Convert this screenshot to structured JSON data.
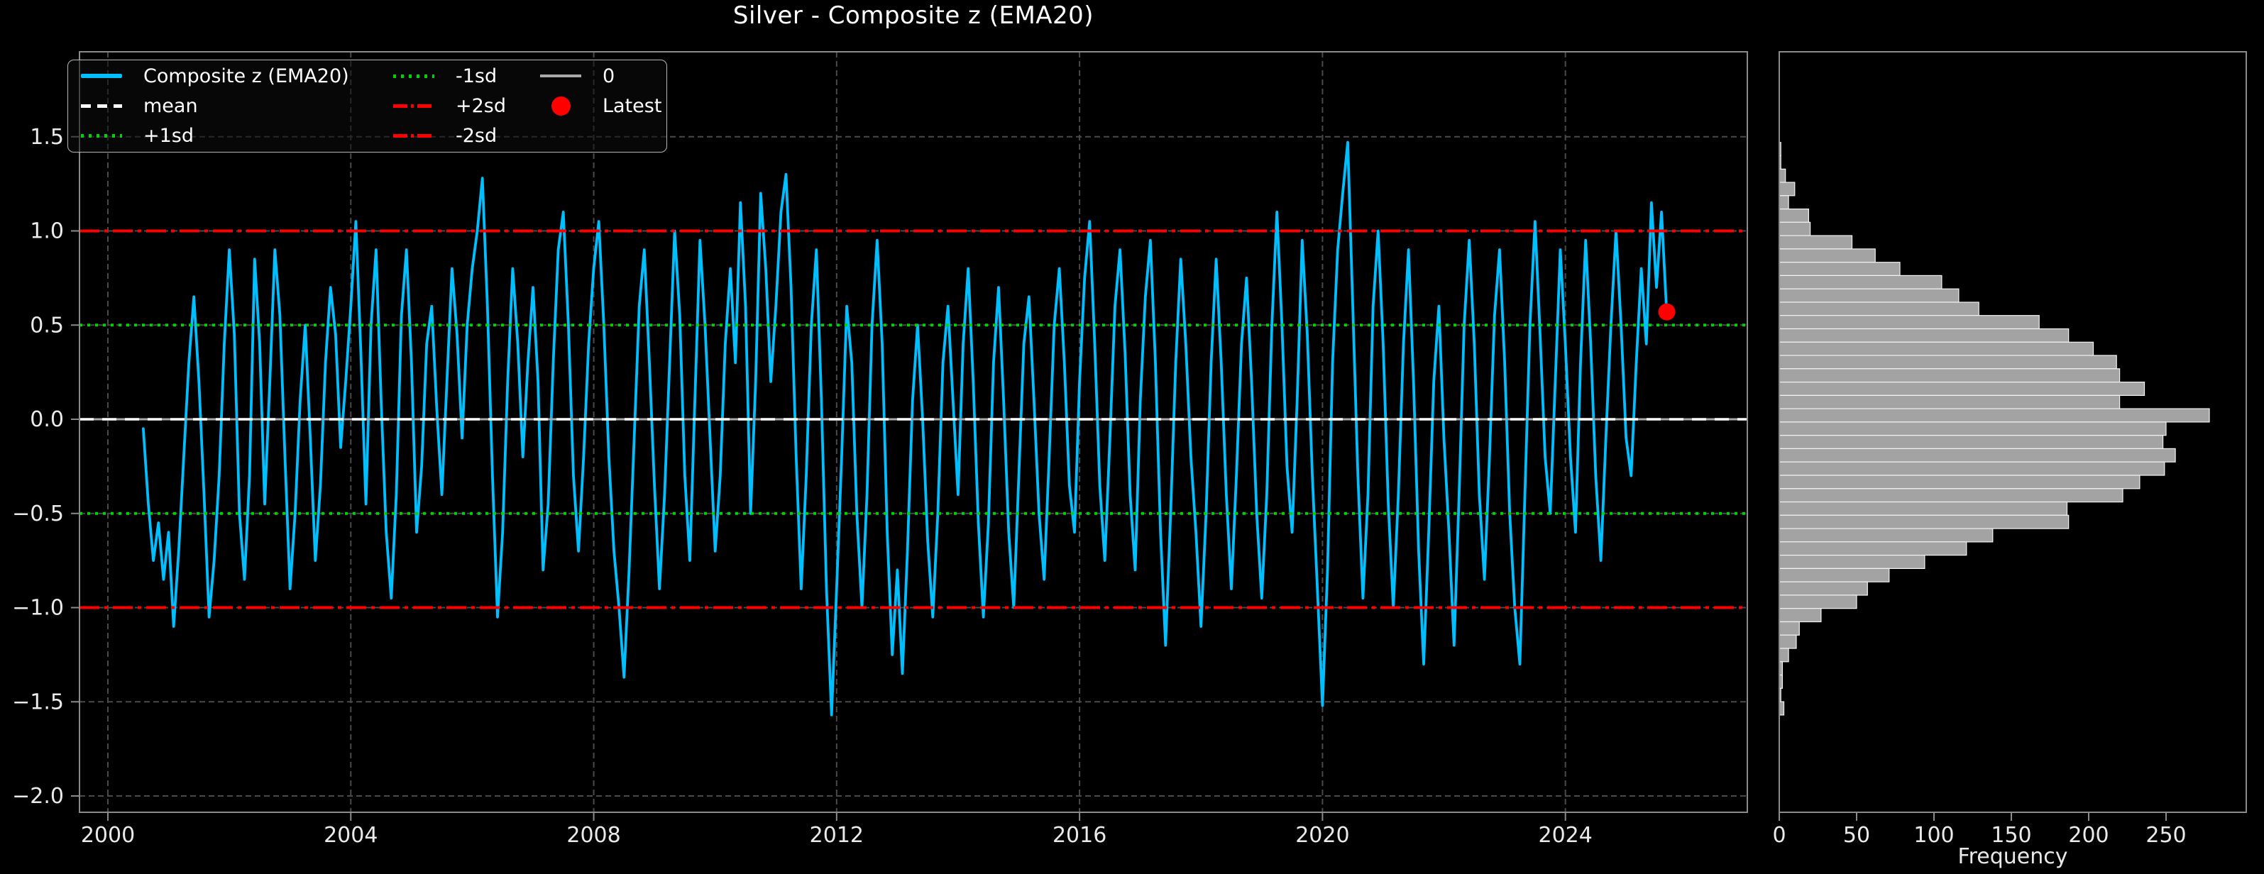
{
  "title": "Silver - Composite z (EMA20)",
  "colors": {
    "background": "#000000",
    "series": "#00bfff",
    "mean": "#ffffff",
    "sd1": "#00d400",
    "sd2": "#ff0000",
    "zero": "#a9a9a9",
    "latest": "#ff0000",
    "grid": "#4a4a4a",
    "spine": "#8a8a8a",
    "tick_label": "#eaeaea",
    "bar_fill": "#a3a3a3",
    "bar_edge": "#f2f2f2"
  },
  "legend": {
    "col1": [
      {
        "label": "Composite z (EMA20)",
        "glyph": "series-line"
      },
      {
        "label": "mean",
        "glyph": "mean-line"
      },
      {
        "label": "+1sd",
        "glyph": "sd1-line"
      }
    ],
    "col2": [
      {
        "label": "-1sd",
        "glyph": "sd1-line"
      },
      {
        "label": "+2sd",
        "glyph": "sd2-line"
      },
      {
        "label": "-2sd",
        "glyph": "sd2-line"
      }
    ],
    "col3": [
      {
        "label": "0",
        "glyph": "zero-line"
      },
      {
        "label": "Latest",
        "glyph": "latest-dot"
      }
    ]
  },
  "chart_data": [
    {
      "type": "line",
      "title": "Silver - Composite z (EMA20)",
      "x_start_year": 2000.583,
      "x_step_years": 0.083333,
      "xlim": [
        1999.53,
        2027.0
      ],
      "ylim": [
        -2.09,
        1.95
      ],
      "grid": true,
      "xticks": [
        {
          "v": 2000,
          "label": "2000"
        },
        {
          "v": 2004,
          "label": "2004"
        },
        {
          "v": 2008,
          "label": "2008"
        },
        {
          "v": 2012,
          "label": "2012"
        },
        {
          "v": 2016,
          "label": "2016"
        },
        {
          "v": 2020,
          "label": "2020"
        },
        {
          "v": 2024,
          "label": "2024"
        }
      ],
      "yticks": [
        {
          "v": 1.5,
          "label": "1.5"
        },
        {
          "v": 1.0,
          "label": "1.0"
        },
        {
          "v": 0.5,
          "label": "0.5"
        },
        {
          "v": 0.0,
          "label": "0.0"
        },
        {
          "v": -0.5,
          "label": "−0.5"
        },
        {
          "v": -1.0,
          "label": "−1.0"
        },
        {
          "v": -1.5,
          "label": "−1.5"
        },
        {
          "v": -2.0,
          "label": "−2.0"
        }
      ],
      "reference_lines": [
        {
          "name": "zero",
          "value": 0.0,
          "style": "solid",
          "color_key": "zero"
        },
        {
          "name": "+1sd",
          "value": 0.5,
          "style": "dotted",
          "color_key": "sd1"
        },
        {
          "name": "-1sd",
          "value": -0.5,
          "style": "dotted",
          "color_key": "sd1"
        },
        {
          "name": "+2sd",
          "value": 1.0,
          "style": "dashdot",
          "color_key": "sd2"
        },
        {
          "name": "-2sd",
          "value": -1.0,
          "style": "dashdot",
          "color_key": "sd2"
        },
        {
          "name": "mean",
          "value": 0.0,
          "style": "dashed",
          "color_key": "mean"
        }
      ],
      "latest": {
        "x_year": 2025.67,
        "value": 0.57
      },
      "series": [
        {
          "name": "Composite z (EMA20)",
          "values": [
            -0.05,
            -0.45,
            -0.75,
            -0.55,
            -0.85,
            -0.6,
            -1.1,
            -0.7,
            -0.2,
            0.3,
            0.65,
            0.2,
            -0.4,
            -1.05,
            -0.75,
            -0.3,
            0.4,
            0.9,
            0.45,
            -0.5,
            -0.85,
            -0.3,
            0.85,
            0.4,
            -0.45,
            0.2,
            0.9,
            0.55,
            -0.2,
            -0.9,
            -0.5,
            0.1,
            0.5,
            -0.1,
            -0.75,
            -0.35,
            0.3,
            0.7,
            0.45,
            -0.15,
            0.2,
            0.6,
            1.05,
            0.35,
            -0.45,
            0.5,
            0.9,
            0.1,
            -0.6,
            -0.95,
            -0.4,
            0.55,
            0.9,
            0.3,
            -0.6,
            -0.25,
            0.4,
            0.6,
            0.05,
            -0.4,
            0.2,
            0.8,
            0.45,
            -0.1,
            0.5,
            0.8,
            1.0,
            1.28,
            0.6,
            -0.3,
            -1.05,
            -0.6,
            0.2,
            0.8,
            0.4,
            -0.2,
            0.3,
            0.7,
            0.2,
            -0.8,
            -0.45,
            0.3,
            0.9,
            1.1,
            0.5,
            -0.3,
            -0.7,
            -0.2,
            0.4,
            0.8,
            1.05,
            0.5,
            -0.2,
            -0.7,
            -1.0,
            -1.37,
            -0.8,
            -0.1,
            0.6,
            0.9,
            0.3,
            -0.35,
            -0.9,
            -0.4,
            0.3,
            1.0,
            0.55,
            -0.3,
            -0.75,
            0.1,
            0.95,
            0.5,
            -0.1,
            -0.7,
            -0.3,
            0.4,
            0.8,
            0.3,
            1.15,
            0.6,
            -0.5,
            0.2,
            1.2,
            0.8,
            0.2,
            0.6,
            1.1,
            1.3,
            0.7,
            -0.2,
            -0.9,
            -0.3,
            0.5,
            0.9,
            0.1,
            -0.9,
            -1.57,
            -0.9,
            -0.2,
            0.6,
            0.3,
            -0.5,
            -1.0,
            -0.4,
            0.5,
            0.95,
            0.4,
            -0.6,
            -1.25,
            -0.8,
            -1.35,
            -0.7,
            0.1,
            0.5,
            0.0,
            -0.65,
            -1.05,
            -0.5,
            0.3,
            0.6,
            0.1,
            -0.4,
            0.4,
            0.8,
            0.2,
            -0.55,
            -1.05,
            -0.55,
            0.3,
            0.7,
            0.1,
            -0.6,
            -1.0,
            -0.3,
            0.4,
            0.65,
            0.1,
            -0.5,
            -0.85,
            -0.2,
            0.5,
            0.8,
            0.3,
            -0.35,
            -0.6,
            0.2,
            0.75,
            1.05,
            0.4,
            -0.35,
            -0.75,
            -0.1,
            0.6,
            0.9,
            0.35,
            -0.4,
            -0.8,
            0.1,
            0.65,
            0.95,
            0.3,
            -0.6,
            -1.2,
            -0.5,
            0.3,
            0.85,
            0.4,
            -0.2,
            -0.6,
            -1.1,
            -0.5,
            0.3,
            0.85,
            0.3,
            -0.4,
            -0.9,
            -0.3,
            0.4,
            0.75,
            0.2,
            -0.5,
            -0.95,
            -0.4,
            0.5,
            1.1,
            0.5,
            -0.25,
            -0.6,
            0.1,
            0.95,
            0.45,
            -0.3,
            -0.9,
            -1.52,
            -0.8,
            0.3,
            0.9,
            1.2,
            1.47,
            0.6,
            -0.3,
            -0.95,
            -0.4,
            0.6,
            1.0,
            0.4,
            -0.45,
            -1.0,
            -0.4,
            0.4,
            0.9,
            0.2,
            -0.7,
            -1.3,
            -0.6,
            0.2,
            0.6,
            -0.1,
            -0.6,
            -1.2,
            -0.4,
            0.5,
            0.95,
            0.4,
            -0.4,
            -0.85,
            -0.2,
            0.55,
            0.9,
            0.3,
            -0.5,
            -1.0,
            -1.3,
            -0.4,
            0.5,
            1.05,
            0.45,
            -0.2,
            -0.5,
            0.2,
            0.9,
            0.4,
            -0.2,
            -0.6,
            0.3,
            0.95,
            0.4,
            -0.3,
            -0.75,
            -0.1,
            0.5,
            1.0,
            0.5,
            -0.1,
            -0.3,
            0.3,
            0.8,
            0.4,
            1.15,
            0.7,
            1.1,
            0.57
          ]
        }
      ]
    },
    {
      "type": "bar",
      "orientation": "horizontal",
      "xlabel": "Frequency",
      "bins": {
        "top_z": 1.47,
        "bin_width_z": 0.0707,
        "count": 43
      },
      "frequencies": [
        1,
        1,
        4,
        10,
        6,
        19,
        20,
        47,
        62,
        78,
        105,
        116,
        129,
        168,
        187,
        203,
        218,
        220,
        236,
        220,
        278,
        250,
        248,
        256,
        249,
        233,
        222,
        186,
        187,
        138,
        121,
        94,
        71,
        57,
        50,
        27,
        13,
        11,
        6,
        2,
        2,
        1,
        3
      ],
      "xticks": [
        {
          "v": 0,
          "label": "0"
        },
        {
          "v": 50,
          "label": "50"
        },
        {
          "v": 100,
          "label": "100"
        },
        {
          "v": 150,
          "label": "150"
        },
        {
          "v": 200,
          "label": "200"
        },
        {
          "v": 250,
          "label": "250"
        }
      ],
      "xlim": [
        0,
        302
      ],
      "grid": false
    }
  ]
}
